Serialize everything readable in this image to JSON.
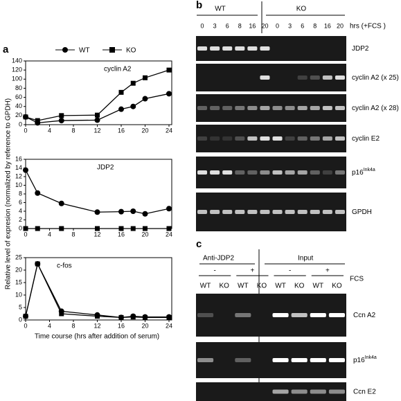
{
  "panel_a": {
    "label": "a",
    "ylabel": "Relative level of expresion (normalized by reference to GPDH)",
    "xlabel": "Time course (hrs after addition of serum)"
  },
  "chart_data": [
    {
      "type": "line",
      "title": "cyclin A2",
      "x": [
        0,
        2,
        6,
        12,
        16,
        18,
        20,
        24
      ],
      "series": [
        {
          "name": "WT",
          "color": "#000000",
          "marker": "circle",
          "values": [
            17,
            4,
            9,
            10,
            34,
            40,
            57,
            68
          ]
        },
        {
          "name": "KO",
          "color": "#000000",
          "marker": "square",
          "values": [
            17,
            9,
            20,
            21,
            71,
            91,
            103,
            120
          ]
        }
      ],
      "xlim": [
        0,
        24
      ],
      "xticks": [
        0,
        4,
        8,
        12,
        16,
        20,
        24
      ],
      "ylim": [
        0,
        140
      ],
      "yticks": [
        0,
        20,
        40,
        60,
        80,
        100,
        120,
        140
      ]
    },
    {
      "type": "line",
      "title": "JDP2",
      "x": [
        0,
        2,
        6,
        12,
        16,
        18,
        20,
        24
      ],
      "series": [
        {
          "name": "WT",
          "color": "#000000",
          "marker": "circle",
          "values": [
            13.5,
            8.2,
            5.8,
            3.8,
            3.9,
            4.0,
            3.4,
            4.6
          ]
        },
        {
          "name": "KO",
          "color": "#000000",
          "marker": "square",
          "values": [
            0,
            0,
            0,
            0,
            0,
            0,
            0,
            0
          ]
        }
      ],
      "xlim": [
        0,
        24
      ],
      "xticks": [
        0,
        4,
        8,
        12,
        16,
        20,
        24
      ],
      "ylim": [
        0,
        16
      ],
      "yticks": [
        0,
        2,
        4,
        6,
        8,
        10,
        12,
        14,
        16
      ]
    },
    {
      "type": "line",
      "title": "c-fos",
      "x": [
        0,
        2,
        6,
        12,
        16,
        18,
        20,
        24
      ],
      "series": [
        {
          "name": "WT",
          "color": "#000000",
          "marker": "circle",
          "values": [
            1.5,
            22.5,
            3.5,
            2,
            1,
            1.5,
            1.2,
            1.2
          ]
        },
        {
          "name": "KO",
          "color": "#000000",
          "marker": "square",
          "values": [
            1.5,
            22.5,
            2.5,
            1.5,
            1,
            1.2,
            1,
            1
          ]
        }
      ],
      "xlim": [
        0,
        24
      ],
      "xticks": [
        0,
        4,
        8,
        12,
        16,
        20,
        24
      ],
      "ylim": [
        0,
        25
      ],
      "yticks": [
        0,
        5,
        10,
        15,
        20,
        25
      ]
    }
  ],
  "panel_b": {
    "label": "b",
    "groups": [
      "WT",
      "KO"
    ],
    "time_header": "hrs (+FCS )",
    "times": [
      "0",
      "3",
      "6",
      "8",
      "16",
      "20",
      "0",
      "3",
      "6",
      "8",
      "16",
      "20"
    ],
    "rows": [
      {
        "text": "JDP2"
      },
      {
        "text": "cyclin A2 (x 25)"
      },
      {
        "text": "cyclin A2 (x 28)"
      },
      {
        "text": "cyclin E2"
      },
      {
        "text": "p16",
        "sup": "Ink4a"
      },
      {
        "text": "GPDH"
      }
    ]
  },
  "panel_c": {
    "label": "c",
    "groups": [
      "Anti-JDP2",
      "Input"
    ],
    "fcs_label": "FCS",
    "signs": [
      "-",
      "+",
      "-",
      "+"
    ],
    "lanes": [
      "WT",
      "KO",
      "WT",
      "KO",
      "WT",
      "KO",
      "WT",
      "KO"
    ],
    "rows": [
      {
        "text": "Ccn A2"
      },
      {
        "text": "p16",
        "sup": "Ink4a"
      },
      {
        "text": "Ccn E2"
      }
    ]
  }
}
